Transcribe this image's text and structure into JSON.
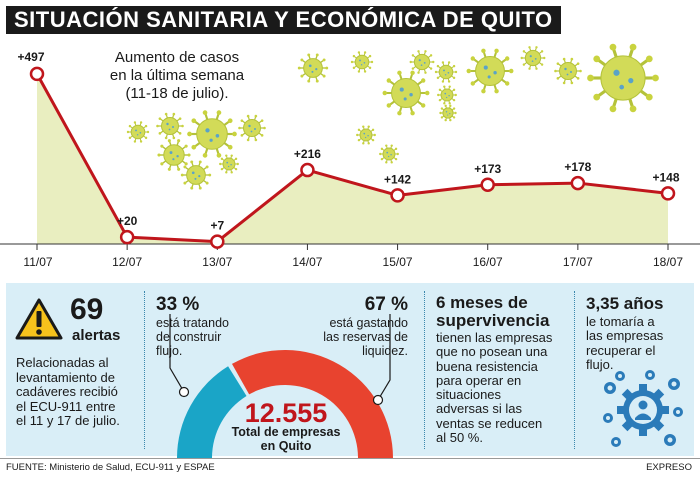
{
  "title": "SITUACIÓN SANITARIA Y ECONÓMICA DE QUITO",
  "chart_data": {
    "type": "area",
    "title": "Aumento de casos en la última semana (11-18 de julio).",
    "title_lines": [
      "Aumento de casos",
      "en la última semana",
      "(11-18 de julio)."
    ],
    "categories": [
      "11/07",
      "12/07",
      "13/07",
      "14/07",
      "15/07",
      "16/07",
      "17/07",
      "18/07"
    ],
    "values": [
      497,
      20,
      7,
      216,
      142,
      173,
      178,
      148
    ],
    "labels": [
      "+497",
      "+20",
      "+7",
      "+216",
      "+142",
      "+173",
      "+178",
      "+148"
    ],
    "ylim": [
      0,
      520
    ],
    "grid": false,
    "colors": {
      "line": "#c0161c",
      "fill": "#e9eec0",
      "marker_fill": "#ffffff"
    }
  },
  "alerts": {
    "count": "69",
    "word": "alertas",
    "description_lines": [
      "Relacionadas al",
      "levantamiento de",
      "cadáveres recibió",
      "el ECU-911 entre",
      "el 11 y 17 de julio."
    ],
    "icon": "warning-icon"
  },
  "gauge": {
    "left_pct": "33 %",
    "left_text_lines": [
      "está tratando",
      "de construir",
      "flujo."
    ],
    "left_value": 33,
    "right_pct": "67 %",
    "right_text_lines": [
      "está gastando",
      "las reservas de",
      "liquidez."
    ],
    "right_value": 67,
    "total": "12.555",
    "total_label_lines": [
      "Total de empresas",
      "en Quito"
    ],
    "colors": {
      "left": "#1aa5c7",
      "right": "#e8432f"
    }
  },
  "supervivencia": {
    "heading_lines": [
      "6 meses de",
      "supervivencia"
    ],
    "text_lines": [
      "tienen las empresas",
      "que no posean una",
      "buena resistencia",
      "para operar en",
      "situaciones",
      "adversas si las",
      "ventas se reducen",
      "al 50 %."
    ]
  },
  "recovery": {
    "heading": "3,35 años",
    "text_lines": [
      "le tomaría a",
      "las empresas",
      "recuperar el",
      "flujo."
    ],
    "icon": "gears-person-icon"
  },
  "footer": {
    "source": "FUENTE: Ministerio de Salud, ECU-911 y ESPAE",
    "brand": "EXPRESO"
  },
  "colors": {
    "panel_bg": "#d9eef7",
    "dark_text": "#1a1a1a",
    "accent_blue": "#2b7bb9"
  }
}
